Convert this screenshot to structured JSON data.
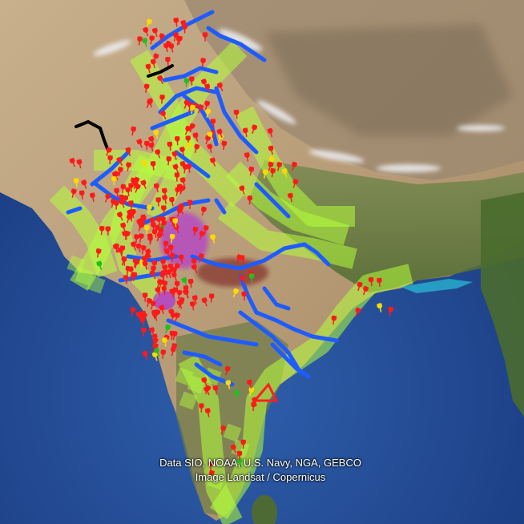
{
  "map": {
    "credits": {
      "data": "Data SIO, NOAA, U.S. Navy, NGA, GEBCO",
      "imagery": "Image Landsat / Copernicus"
    },
    "colors": {
      "ocean_deep": "#1d3f86",
      "ocean_shallow": "#3f6fb4",
      "land_arid": "#c9b48f",
      "land_green": "#5b7a3a",
      "mountains": "#8a7a64",
      "snow": "#e8e8ee",
      "corridor": "#b4ff3c",
      "river": "#1e5cff",
      "pin": "#ff1a1a",
      "pin_yellow": "#ffd800",
      "boundary": "#000000",
      "zone": "#b000ff"
    }
  }
}
